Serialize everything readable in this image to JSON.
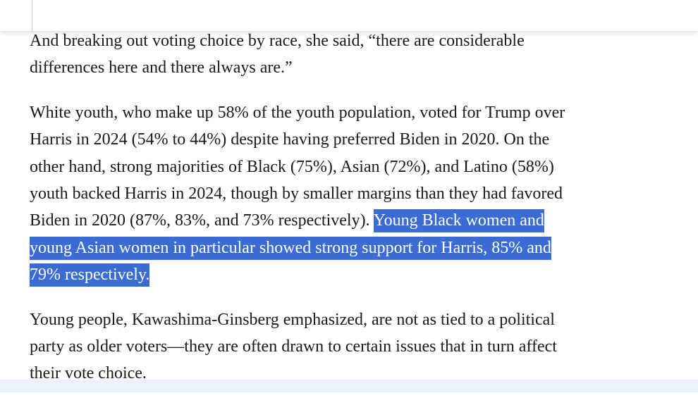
{
  "paragraphs": [
    {
      "lines": [
        "And breaking out voting choice by race, she said, “there are considerable",
        "differences here and there always are.”"
      ]
    },
    {
      "lines": [
        "White youth, who make up 58% of the youth population, voted for Trump over",
        "Harris in 2024 (54% to 44%) despite having preferred Biden in 2020. On the",
        "other hand, strong majorities of Black (75%), Asian (72%), and Latino (58%)",
        "youth backed Harris in 2024, though by smaller margins than they had favored",
        "Biden in 2020 (87%, 83%, and 73% respectively)."
      ],
      "highlighted_lines": [
        "Young Black women and",
        "young Asian women in particular showed strong support for Harris, 85% and",
        "79% respectively."
      ]
    },
    {
      "lines": [
        "Young people, Kawashima-Ginsberg emphasized, are not as tied to a political",
        "party as older voters—they are often drawn to certain issues that in turn affect",
        "their vote choice."
      ]
    }
  ]
}
